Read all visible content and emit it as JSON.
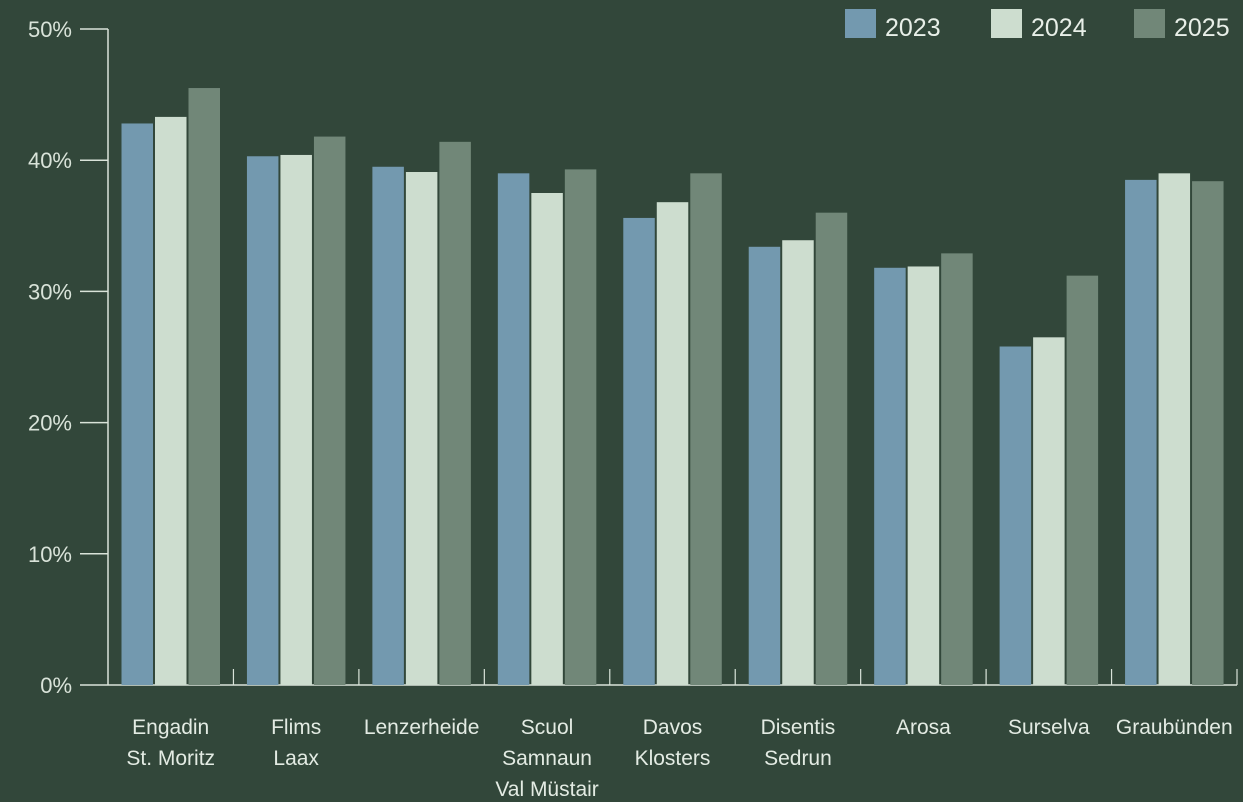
{
  "chart_data": {
    "type": "bar",
    "title": "",
    "xlabel": "",
    "ylabel": "",
    "ylim": [
      0,
      50
    ],
    "y_ticks": [
      {
        "value": 0,
        "label": "0%"
      },
      {
        "value": 10,
        "label": "10%"
      },
      {
        "value": 20,
        "label": "20%"
      },
      {
        "value": 30,
        "label": "30%"
      },
      {
        "value": 40,
        "label": "40%"
      },
      {
        "value": 50,
        "label": "50%"
      }
    ],
    "grid": false,
    "legend_position": "top-right",
    "categories": [
      [
        "Engadin",
        "St. Moritz"
      ],
      [
        "Flims",
        "Laax"
      ],
      [
        "Lenzerheide"
      ],
      [
        "Scuol",
        "Samnaun",
        "Val Müstair"
      ],
      [
        "Davos",
        "Klosters"
      ],
      [
        "Disentis",
        "Sedrun"
      ],
      [
        "Arosa"
      ],
      [
        "Surselva"
      ],
      [
        "Graubünden"
      ]
    ],
    "series": [
      {
        "name": "2023",
        "color": "#7399af",
        "values": [
          42.8,
          40.3,
          39.5,
          39.0,
          35.6,
          33.4,
          31.8,
          25.8,
          38.5
        ]
      },
      {
        "name": "2024",
        "color": "#cdddcf",
        "values": [
          43.3,
          40.4,
          39.1,
          37.5,
          36.8,
          33.9,
          31.9,
          26.5,
          39.0
        ]
      },
      {
        "name": "2025",
        "color": "#718778",
        "values": [
          45.5,
          41.8,
          41.4,
          39.3,
          39.0,
          36.0,
          32.9,
          31.2,
          38.4
        ]
      }
    ],
    "axis_color": "#d9e3d9"
  }
}
